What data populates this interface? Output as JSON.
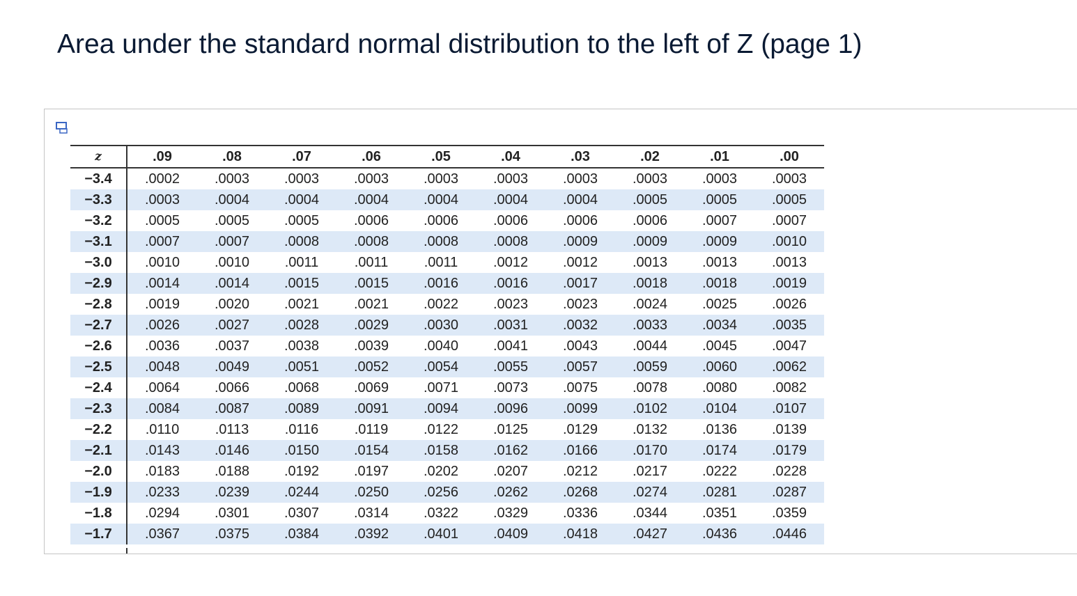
{
  "title": "Area under the standard normal distribution to the left of Z (page 1)",
  "table": {
    "columns": [
      "z",
      ".09",
      ".08",
      ".07",
      ".06",
      ".05",
      ".04",
      ".03",
      ".02",
      ".01",
      ".00"
    ],
    "rows": [
      {
        "z": "−3.4",
        "values": [
          ".0002",
          ".0003",
          ".0003",
          ".0003",
          ".0003",
          ".0003",
          ".0003",
          ".0003",
          ".0003",
          ".0003"
        ]
      },
      {
        "z": "−3.3",
        "values": [
          ".0003",
          ".0004",
          ".0004",
          ".0004",
          ".0004",
          ".0004",
          ".0004",
          ".0005",
          ".0005",
          ".0005"
        ]
      },
      {
        "z": "−3.2",
        "values": [
          ".0005",
          ".0005",
          ".0005",
          ".0006",
          ".0006",
          ".0006",
          ".0006",
          ".0006",
          ".0007",
          ".0007"
        ]
      },
      {
        "z": "−3.1",
        "values": [
          ".0007",
          ".0007",
          ".0008",
          ".0008",
          ".0008",
          ".0008",
          ".0009",
          ".0009",
          ".0009",
          ".0010"
        ]
      },
      {
        "z": "−3.0",
        "values": [
          ".0010",
          ".0010",
          ".0011",
          ".0011",
          ".0011",
          ".0012",
          ".0012",
          ".0013",
          ".0013",
          ".0013"
        ]
      },
      {
        "z": "−2.9",
        "values": [
          ".0014",
          ".0014",
          ".0015",
          ".0015",
          ".0016",
          ".0016",
          ".0017",
          ".0018",
          ".0018",
          ".0019"
        ]
      },
      {
        "z": "−2.8",
        "values": [
          ".0019",
          ".0020",
          ".0021",
          ".0021",
          ".0022",
          ".0023",
          ".0023",
          ".0024",
          ".0025",
          ".0026"
        ]
      },
      {
        "z": "−2.7",
        "values": [
          ".0026",
          ".0027",
          ".0028",
          ".0029",
          ".0030",
          ".0031",
          ".0032",
          ".0033",
          ".0034",
          ".0035"
        ]
      },
      {
        "z": "−2.6",
        "values": [
          ".0036",
          ".0037",
          ".0038",
          ".0039",
          ".0040",
          ".0041",
          ".0043",
          ".0044",
          ".0045",
          ".0047"
        ]
      },
      {
        "z": "−2.5",
        "values": [
          ".0048",
          ".0049",
          ".0051",
          ".0052",
          ".0054",
          ".0055",
          ".0057",
          ".0059",
          ".0060",
          ".0062"
        ]
      },
      {
        "z": "−2.4",
        "values": [
          ".0064",
          ".0066",
          ".0068",
          ".0069",
          ".0071",
          ".0073",
          ".0075",
          ".0078",
          ".0080",
          ".0082"
        ]
      },
      {
        "z": "−2.3",
        "values": [
          ".0084",
          ".0087",
          ".0089",
          ".0091",
          ".0094",
          ".0096",
          ".0099",
          ".0102",
          ".0104",
          ".0107"
        ]
      },
      {
        "z": "−2.2",
        "values": [
          ".0110",
          ".0113",
          ".0116",
          ".0119",
          ".0122",
          ".0125",
          ".0129",
          ".0132",
          ".0136",
          ".0139"
        ]
      },
      {
        "z": "−2.1",
        "values": [
          ".0143",
          ".0146",
          ".0150",
          ".0154",
          ".0158",
          ".0162",
          ".0166",
          ".0170",
          ".0174",
          ".0179"
        ]
      },
      {
        "z": "−2.0",
        "values": [
          ".0183",
          ".0188",
          ".0192",
          ".0197",
          ".0202",
          ".0207",
          ".0212",
          ".0217",
          ".0222",
          ".0228"
        ]
      },
      {
        "z": "−1.9",
        "values": [
          ".0233",
          ".0239",
          ".0244",
          ".0250",
          ".0256",
          ".0262",
          ".0268",
          ".0274",
          ".0281",
          ".0287"
        ]
      },
      {
        "z": "−1.8",
        "values": [
          ".0294",
          ".0301",
          ".0307",
          ".0314",
          ".0322",
          ".0329",
          ".0336",
          ".0344",
          ".0351",
          ".0359"
        ]
      },
      {
        "z": "−1.7",
        "values": [
          ".0367",
          ".0375",
          ".0384",
          ".0392",
          ".0401",
          ".0409",
          ".0418",
          ".0427",
          ".0436",
          ".0446"
        ]
      }
    ]
  }
}
